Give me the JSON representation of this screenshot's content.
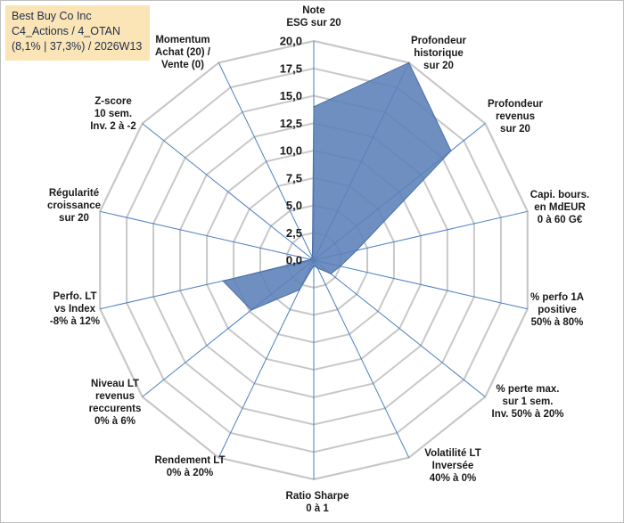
{
  "title": {
    "line1": "Best Buy Co Inc",
    "line2": "C4_Actions / 4_OTAN",
    "line3": "(8,1% | 37,3%) / 2026W13"
  },
  "colors": {
    "fill": "#5b7fb8",
    "stroke": "#4a6fa5",
    "grid": "#c8c8c8",
    "spoke": "#4a7fc1",
    "title_bg": "#fbe5b6"
  },
  "chart_data": {
    "type": "radar",
    "rlim": [
      0,
      20
    ],
    "ticks": [
      "0,0",
      "2,5",
      "5,0",
      "7,5",
      "10,0",
      "12,5",
      "15,0",
      "17,5",
      "20,0"
    ],
    "grid": true,
    "axes": [
      {
        "label": [
          "Note",
          "ESG sur 20"
        ],
        "value": 14
      },
      {
        "label": [
          "Profondeur",
          "historique",
          "sur 20"
        ],
        "value": 20
      },
      {
        "label": [
          "Profondeur",
          "revenus",
          "sur 20"
        ],
        "value": 16
      },
      {
        "label": [
          "Capi. bours.",
          "en MdEUR",
          "0 à 60 G€"
        ],
        "value": 4
      },
      {
        "label": [
          "% perfo 1A",
          "positive",
          "50% à 80%"
        ],
        "value": 2.5
      },
      {
        "label": [
          "% perte max.",
          "sur 1 sem.",
          "Inv. 50% à 20%"
        ],
        "value": 2
      },
      {
        "label": [
          "Volatilité LT",
          "Inversée",
          "40% à 0%"
        ],
        "value": 0.8
      },
      {
        "label": [
          "Ratio Sharpe",
          "0 à 1"
        ],
        "value": 0.5
      },
      {
        "label": [
          "Rendement LT",
          "0% à 20%"
        ],
        "value": 3
      },
      {
        "label": [
          "Niveau LT",
          "revenus",
          "reccurents",
          "0% à 6%"
        ],
        "value": 7.3
      },
      {
        "label": [
          "Perfo. LT",
          "vs Index",
          "-8% à 12%"
        ],
        "value": 8.5
      },
      {
        "label": [
          "Régularité",
          "croissance",
          "sur 20"
        ],
        "value": 0.3
      },
      {
        "label": [
          "Z-score",
          "10 sem.",
          "Inv. 2 à -2"
        ],
        "value": 0.3
      },
      {
        "label": [
          "Momentum",
          "Achat (20) /",
          "Vente (0)"
        ],
        "value": 0.3
      }
    ]
  }
}
